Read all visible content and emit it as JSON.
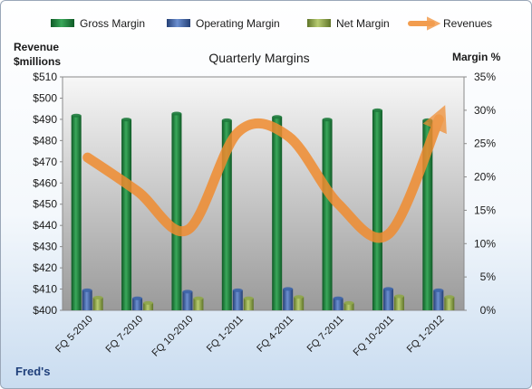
{
  "chart_data": {
    "type": "bar",
    "title": "Quarterly Margins",
    "footer_label": "Fred's",
    "y_left": {
      "label_line1": "Revenue",
      "label_line2": "$millions",
      "range": [
        400,
        510
      ],
      "ticks": [
        "$400",
        "$410",
        "$420",
        "$430",
        "$440",
        "$450",
        "$460",
        "$470",
        "$480",
        "$490",
        "$500",
        "$510"
      ]
    },
    "y_right": {
      "label": "Margin %",
      "range": [
        0,
        35
      ],
      "ticks": [
        "0%",
        "5%",
        "10%",
        "15%",
        "20%",
        "25%",
        "30%",
        "35%"
      ]
    },
    "categories": [
      "FQ 5-2010",
      "FQ 7-2010",
      "FQ 10-2010",
      "FQ 1-2011",
      "FQ 4-2011",
      "FQ 7-2011",
      "FQ 10-2011",
      "FQ 1-2012"
    ],
    "series": [
      {
        "name": "Gross Margin",
        "axis": "right",
        "kind": "bar",
        "color": "#1e7a3c",
        "values": [
          29.2,
          28.6,
          29.5,
          28.5,
          29.0,
          28.6,
          30.0,
          28.5
        ]
      },
      {
        "name": "Operating Margin",
        "axis": "right",
        "kind": "bar",
        "color": "#3d64a8",
        "values": [
          3.0,
          1.8,
          2.8,
          3.0,
          3.2,
          1.8,
          3.2,
          3.0
        ]
      },
      {
        "name": "Net Margin",
        "axis": "right",
        "kind": "bar",
        "color": "#8fa64a",
        "values": [
          1.9,
          1.1,
          1.8,
          1.8,
          2.0,
          1.1,
          2.1,
          2.0
        ]
      },
      {
        "name": "Revenues",
        "axis": "left",
        "kind": "line",
        "color": "#f08c30",
        "values": [
          472,
          456,
          438,
          484,
          482,
          450,
          436,
          490
        ]
      }
    ],
    "legend_position": "top",
    "grid": false
  }
}
